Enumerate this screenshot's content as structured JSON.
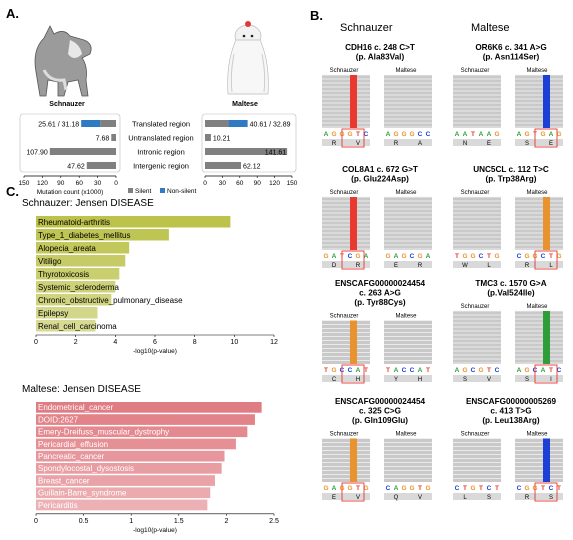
{
  "panels": {
    "a": "A.",
    "b": "B.",
    "c": "C."
  },
  "panel_a": {
    "breeds": {
      "left": "Schnauzer",
      "right": "Maltese"
    },
    "x_axis_label": "Mutation count (x1000)",
    "legend": {
      "silent": "Silent",
      "non_silent": "Non-silent"
    },
    "colors": {
      "silent": "#808080",
      "non_silent": "#2e7bc4"
    },
    "chart_data": {
      "type": "bar",
      "categories": [
        "Translated region",
        "Untranslated region",
        "Intronic region",
        "Intergenic region"
      ],
      "schnauzer": {
        "labels": [
          "25.61 / 31.18",
          "7.68",
          "107.90",
          "47.62"
        ],
        "silent": [
          25.61,
          7.68,
          107.9,
          47.62
        ],
        "non_silent": [
          31.18,
          0,
          0,
          0
        ]
      },
      "maltese": {
        "labels": [
          "40.61 / 32.89",
          "10.21",
          "141.61",
          "62.12"
        ],
        "silent": [
          40.61,
          10.21,
          141.61,
          62.12
        ],
        "non_silent": [
          32.89,
          0,
          0,
          0
        ]
      },
      "left_ticks": [
        "150",
        "120",
        "90",
        "60",
        "30",
        "0"
      ],
      "right_ticks": [
        "0",
        "30",
        "60",
        "90",
        "120",
        "150"
      ],
      "xlim": [
        0,
        150
      ]
    }
  },
  "panel_b": {
    "columns": {
      "left": "Schnauzer",
      "right": "Maltese"
    },
    "sub_labels": {
      "schnauzer": "Schnauzer",
      "maltese": "Maltese"
    },
    "cards": [
      {
        "title1": "CDH16 c. 248 C>T",
        "title2": "(p. Ala83Val)",
        "col": "left",
        "row": 0,
        "hl": "#e8382f",
        "hl_side": "left",
        "s_seq": "AGGGTC",
        "m_seq": "AGGGCC",
        "s_aa": [
          "R",
          "V"
        ],
        "m_aa": [
          "R",
          "A"
        ]
      },
      {
        "title1": "OR6K6 c. 341 A>G",
        "title2": "(p. Asn114Ser)",
        "col": "right",
        "row": 0,
        "hl": "#1c3fd6",
        "hl_side": "right",
        "s_seq": "AATAAG",
        "m_seq": "AGTGAG",
        "s_aa": [
          "N",
          "E"
        ],
        "m_aa": [
          "S",
          "E"
        ]
      },
      {
        "title1": "COL8A1 c. 672 G>T",
        "title2": "(p. Glu224Asp)",
        "col": "left",
        "row": 1,
        "hl": "#e8382f",
        "hl_side": "left",
        "s_seq": "GATCGA",
        "m_seq": "GAGCGA",
        "s_aa": [
          "D",
          "R"
        ],
        "m_aa": [
          "E",
          "R"
        ]
      },
      {
        "title1": "UNC5CL c. 112 T>C",
        "title2": "(p. Trp38Arg)",
        "col": "right",
        "row": 1,
        "hl": "#e8932f",
        "hl_side": "right",
        "s_seq": "TGGCTG",
        "m_seq": "CGGCTG",
        "s_aa": [
          "W",
          "L"
        ],
        "m_aa": [
          "R",
          "L"
        ]
      },
      {
        "title1": "ENSCAFG00000024454",
        "title2": "c. 263 A>G",
        "title3": "(p. Tyr88Cys)",
        "col": "left",
        "row": 2,
        "hl": "#e8932f",
        "hl_side": "left",
        "s_seq": "TGCCAT",
        "m_seq": "TACCAT",
        "s_aa": [
          "C",
          "H"
        ],
        "m_aa": [
          "Y",
          "H"
        ]
      },
      {
        "title1": "TMC3 c. 1570 G>A",
        "title2": "(p.Val524Ile)",
        "col": "right",
        "row": 2,
        "hl": "#2f9e3a",
        "hl_side": "right",
        "s_seq": "AGCGTC",
        "m_seq": "AGCATC",
        "s_aa": [
          "S",
          "V"
        ],
        "m_aa": [
          "S",
          "I"
        ]
      },
      {
        "title1": "ENSCAFG00000024454",
        "title2": "c. 325 C>G",
        "title3": "(p. Gln109Glu)",
        "col": "left",
        "row": 3,
        "hl": "#e8932f",
        "hl_side": "left",
        "s_seq": "GAGGTG",
        "m_seq": "CAGGTG",
        "s_aa": [
          "E",
          "V"
        ],
        "m_aa": [
          "Q",
          "V"
        ]
      },
      {
        "title1": "ENSCAFG00000005269",
        "title2": "c. 413 T>G",
        "title3": "(p. Leu138Arg)",
        "col": "right",
        "row": 3,
        "hl": "#1c3fd6",
        "hl_side": "right",
        "s_seq": "CTGTCT",
        "m_seq": "CGGTCT",
        "s_aa": [
          "L",
          "S"
        ],
        "m_aa": [
          "R",
          "S"
        ]
      }
    ]
  },
  "panel_c": {
    "top_title": "Schnauzer: Jensen DISEASE",
    "top_xlabel": "-log10(p-value)",
    "top_color": "#bcc24a",
    "top_chart": {
      "type": "bar",
      "categories": [
        "Rheumatoid-arthritis",
        "Type_1_diabetes_mellitus",
        "Alopecia_areata",
        "Vitiligo",
        "Thyrotoxicosis",
        "Systemic_scleroderma",
        "Chronic_obstructive_pulmonary_disease",
        "Epilepsy",
        "Renal_cell_carcinoma"
      ],
      "values": [
        9.8,
        6.7,
        4.7,
        4.5,
        4.2,
        4.0,
        3.8,
        3.1,
        3.0
      ],
      "ticks": [
        "0",
        "2",
        "4",
        "6",
        "8",
        "10",
        "12"
      ],
      "xlim": [
        0,
        12
      ]
    },
    "bottom_title": "Maltese: Jensen DISEASE",
    "bottom_xlabel": "-log10(p-value)",
    "bottom_color": "#e07c83",
    "bottom_chart": {
      "type": "bar",
      "categories": [
        "Endometrical_cancer",
        "DOID:2627",
        "Emery-Dreifuss_muscular_dystrophy",
        "Pericardial_effusion",
        "Pancreatic_cancer",
        "Spondylocostal_dysostosis",
        "Breast_cancer",
        "Guillain-Barre_syndrome",
        "Pericarditis"
      ],
      "values": [
        2.37,
        2.3,
        2.22,
        2.1,
        1.98,
        1.95,
        1.88,
        1.83,
        1.8
      ],
      "ticks": [
        "0",
        "0.5",
        "1",
        "1.5",
        "2",
        "2.5"
      ],
      "xlim": [
        0,
        2.5
      ]
    }
  }
}
